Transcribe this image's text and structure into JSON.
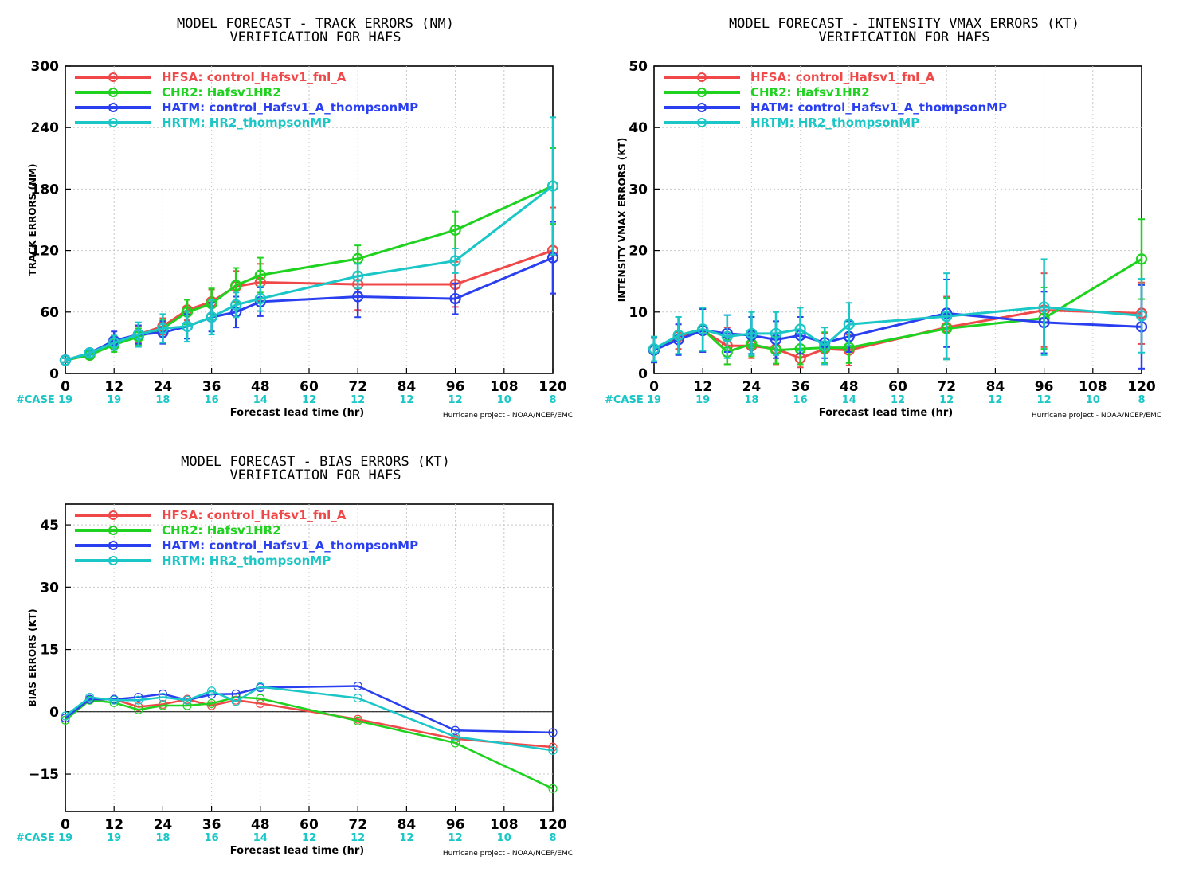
{
  "colors": {
    "HFSA": "#f04848",
    "CHR2": "#1fd21f",
    "HATM": "#2a3ff0",
    "HRTM": "#1ac6c6",
    "case_label": "#1ac6c6"
  },
  "legend": [
    {
      "id": "HFSA",
      "label": "HFSA: control_Hafsv1_fnl_A"
    },
    {
      "id": "CHR2",
      "label": "CHR2: Hafsv1HR2"
    },
    {
      "id": "HATM",
      "label": "HATM: control_Hafsv1_A_thompsonMP"
    },
    {
      "id": "HRTM",
      "label": "HRTM: HR2_thompsonMP"
    }
  ],
  "xaxis": {
    "label": "Forecast lead time (hr)",
    "ticks": [
      0,
      12,
      24,
      36,
      48,
      60,
      72,
      84,
      96,
      108,
      120
    ],
    "xlim": [
      0,
      120
    ],
    "case_prefix": "#CASE",
    "case_counts": [
      "19",
      "19",
      "18",
      "16",
      "14",
      "12",
      "12",
      "12",
      "12",
      "10",
      "8"
    ]
  },
  "credit": "Hurricane project - NOAA/NCEP/EMC",
  "chart_data": [
    {
      "id": "track",
      "type": "line",
      "title": [
        "MODEL FORECAST - TRACK ERRORS (NM)",
        "VERIFICATION FOR HAFS"
      ],
      "ylabel": "TRACK ERRORS (NM)",
      "ylim": [
        0,
        300
      ],
      "yticks": [
        0,
        60,
        120,
        180,
        240,
        300
      ],
      "grid": true,
      "legend_position": "top-left",
      "x": [
        0,
        6,
        12,
        18,
        24,
        30,
        36,
        42,
        48,
        72,
        96,
        120
      ],
      "series": [
        {
          "name": "HFSA",
          "values": [
            13,
            18,
            30,
            38,
            46,
            62,
            70,
            85,
            89,
            87,
            87,
            120
          ],
          "err": [
            2,
            4,
            7,
            8,
            8,
            10,
            12,
            15,
            18,
            25,
            22,
            42
          ]
        },
        {
          "name": "CHR2",
          "values": [
            13,
            18,
            28,
            36,
            44,
            60,
            68,
            86,
            96,
            112,
            140,
            183
          ],
          "err": [
            2,
            4,
            7,
            8,
            8,
            12,
            15,
            17,
            17,
            13,
            18,
            37
          ]
        },
        {
          "name": "HATM",
          "values": [
            13,
            20,
            32,
            38,
            40,
            46,
            55,
            60,
            70,
            75,
            73,
            113
          ],
          "err": [
            2,
            4,
            9,
            9,
            11,
            12,
            14,
            15,
            14,
            20,
            15,
            35
          ]
        },
        {
          "name": "HRTM",
          "values": [
            13,
            20,
            30,
            38,
            44,
            46,
            55,
            67,
            73,
            95,
            110,
            183
          ],
          "err": [
            2,
            4,
            7,
            12,
            14,
            15,
            17,
            12,
            12,
            12,
            12,
            67
          ]
        }
      ]
    },
    {
      "id": "intensity",
      "type": "line",
      "title": [
        "MODEL FORECAST - INTENSITY VMAX ERRORS (KT)",
        "VERIFICATION FOR HAFS"
      ],
      "ylabel": "INTENSITY VMAX ERRORS (KT)",
      "ylim": [
        0,
        50
      ],
      "yticks": [
        0,
        10,
        20,
        30,
        40,
        50
      ],
      "grid": true,
      "legend_position": "top-left",
      "x": [
        0,
        6,
        12,
        18,
        24,
        30,
        36,
        42,
        48,
        72,
        96,
        120
      ],
      "series": [
        {
          "name": "HFSA",
          "values": [
            3.8,
            6.0,
            7.0,
            4.5,
            4.5,
            4.0,
            2.5,
            4.0,
            3.8,
            7.5,
            10.3,
            9.8
          ],
          "err": [
            2,
            2,
            3.5,
            3,
            2,
            2.5,
            1.5,
            2.5,
            2.5,
            5,
            6,
            5
          ]
        },
        {
          "name": "CHR2",
          "values": [
            3.8,
            6.2,
            7.2,
            3.5,
            4.8,
            3.8,
            4.0,
            4.2,
            4.2,
            7.3,
            9.0,
            18.6
          ],
          "err": [
            2,
            3,
            3.5,
            2,
            2,
            2.2,
            2.5,
            2.5,
            2.5,
            5,
            5,
            6.5
          ]
        },
        {
          "name": "HATM",
          "values": [
            3.8,
            5.5,
            7.0,
            6.5,
            6.2,
            5.5,
            6.2,
            5.0,
            6.0,
            9.8,
            8.3,
            7.6
          ],
          "err": [
            2,
            2.5,
            3.5,
            3,
            3,
            3,
            3,
            2.5,
            2.5,
            5.5,
            5,
            6.8
          ]
        },
        {
          "name": "HRTM",
          "values": [
            4.0,
            6.2,
            7.2,
            6.0,
            6.5,
            6.5,
            7.2,
            4.5,
            8.0,
            9.3,
            10.8,
            9.4
          ],
          "err": [
            2,
            3,
            3.5,
            3.5,
            3.5,
            3.5,
            3.5,
            3,
            3.5,
            7,
            7.8,
            6
          ]
        }
      ]
    },
    {
      "id": "bias",
      "type": "line",
      "title": [
        "MODEL FORECAST - BIAS ERRORS (KT)",
        "VERIFICATION FOR HAFS"
      ],
      "ylabel": "BIAS ERRORS (KT)",
      "ylim": [
        -24,
        50
      ],
      "yticks": [
        -15,
        0,
        15,
        30,
        45
      ],
      "ytick_labels": [
        "−15",
        "0",
        "15",
        "30",
        "45"
      ],
      "grid": true,
      "zero_line": true,
      "legend_position": "top-left",
      "x": [
        0,
        6,
        12,
        18,
        24,
        30,
        36,
        42,
        48,
        72,
        96,
        120
      ],
      "series": [
        {
          "name": "HFSA",
          "values": [
            -1.5,
            3.0,
            3.0,
            1.2,
            1.8,
            3.0,
            1.5,
            2.8,
            2.0,
            -1.8,
            -6.5,
            -8.5
          ]
        },
        {
          "name": "CHR2",
          "values": [
            -2.0,
            2.8,
            2.2,
            0.5,
            1.5,
            1.5,
            2.0,
            3.5,
            3.2,
            -2.2,
            -7.5,
            -18.5
          ]
        },
        {
          "name": "HATM",
          "values": [
            -1.5,
            3.0,
            3.0,
            3.5,
            4.3,
            2.8,
            4.2,
            4.3,
            5.8,
            6.2,
            -4.5,
            -5.0
          ]
        },
        {
          "name": "HRTM",
          "values": [
            -1.0,
            3.5,
            2.8,
            2.8,
            3.5,
            2.8,
            5.0,
            2.5,
            6.0,
            3.3,
            -6.0,
            -9.3
          ]
        }
      ]
    }
  ]
}
